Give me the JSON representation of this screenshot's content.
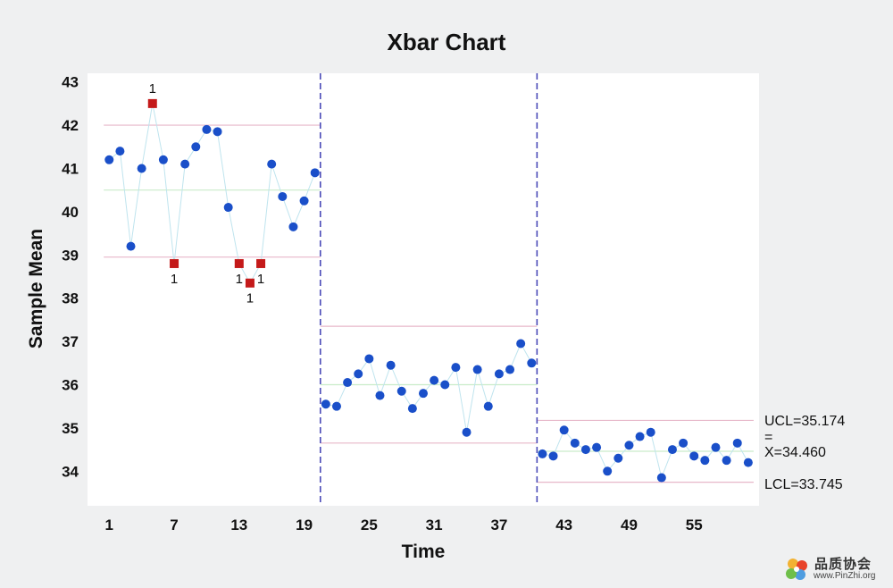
{
  "chart_data": {
    "type": "scatter",
    "title": "Xbar Chart",
    "xlabel": "Time",
    "ylabel": "Sample Mean",
    "xlim": [
      -1,
      61
    ],
    "ylim": [
      33.2,
      43.2
    ],
    "x_ticks": [
      1,
      7,
      13,
      19,
      25,
      31,
      37,
      43,
      49,
      55
    ],
    "y_ticks": [
      34,
      35,
      36,
      37,
      38,
      39,
      40,
      41,
      42,
      43
    ],
    "grid": false,
    "colors": {
      "point": "#1a4fc9",
      "out_of_control": "#c41a1a",
      "control_line": "#e7b7c9",
      "center_line": "#c9ecc9",
      "connector": "#bfe4ee",
      "stage_divider": "#4a4ab8"
    },
    "stage_dividers": [
      20.5,
      40.5
    ],
    "stages": [
      {
        "x_start": 1,
        "x_end": 20,
        "ucl": 42.0,
        "center": 40.5,
        "lcl": 38.95,
        "values": [
          41.2,
          41.4,
          39.2,
          41.0,
          42.5,
          41.2,
          38.8,
          41.1,
          41.5,
          41.9,
          41.85,
          40.1,
          38.8,
          38.35,
          38.8,
          41.1,
          40.35,
          39.65,
          40.25,
          40.9
        ],
        "out_of_control": [
          5,
          7,
          13,
          14,
          15
        ],
        "flag_label": "1"
      },
      {
        "x_start": 21,
        "x_end": 40,
        "ucl": 37.35,
        "center": 36.0,
        "lcl": 34.65,
        "values": [
          35.55,
          35.5,
          36.05,
          36.25,
          36.6,
          35.75,
          36.45,
          35.85,
          35.45,
          35.8,
          36.1,
          36.0,
          36.4,
          34.9,
          36.35,
          35.5,
          36.25,
          36.35,
          36.95,
          36.5
        ],
        "out_of_control": [],
        "flag_label": "1"
      },
      {
        "x_start": 41,
        "x_end": 60,
        "ucl": 35.174,
        "center": 34.46,
        "lcl": 33.745,
        "values": [
          34.4,
          34.35,
          34.95,
          34.65,
          34.5,
          34.55,
          34.0,
          34.3,
          34.6,
          34.8,
          34.9,
          33.85,
          34.5,
          34.65,
          34.35,
          34.25,
          34.55,
          34.25,
          34.65,
          34.2
        ],
        "out_of_control": [],
        "flag_label": "1"
      }
    ],
    "reference_labels": {
      "ucl": "UCL=35.174",
      "center_bar": "=",
      "center": "X=34.460",
      "lcl": "LCL=33.745"
    }
  },
  "watermark": {
    "text": "品质协会",
    "url": "www.PinZhi.org"
  }
}
